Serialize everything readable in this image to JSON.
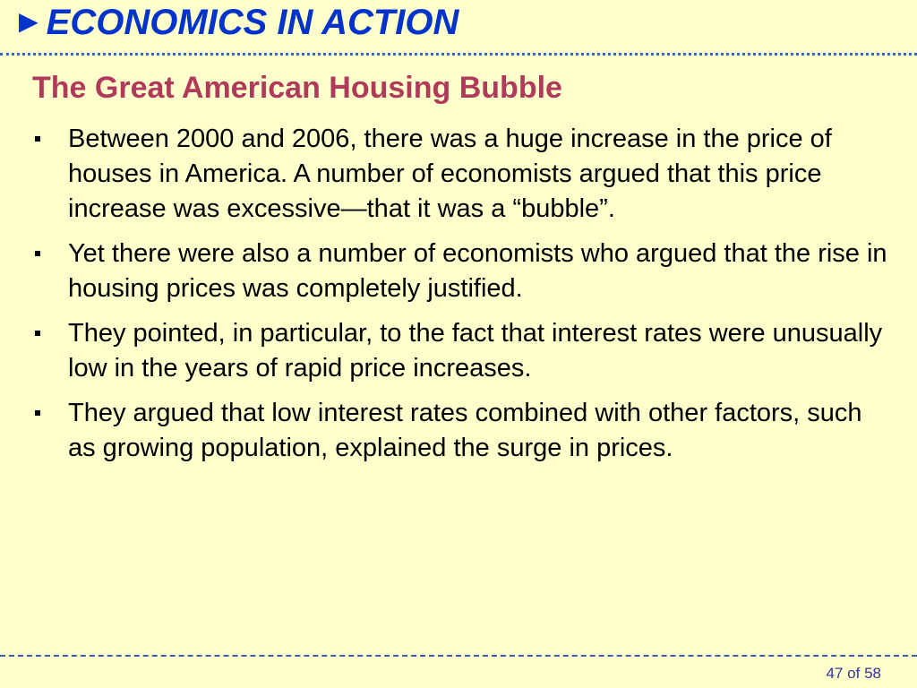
{
  "header": {
    "arrow_glyph": "►",
    "title": "ECONOMICS IN ACTION"
  },
  "slide": {
    "subtitle": "The Great American Housing Bubble",
    "bullets": [
      "Between 2000 and 2006, there was a huge increase in the price of houses in America. A number of economists argued that this price increase was excessive—that it was a “bubble”.",
      "Yet there were also a number of economists who argued that the rise in housing prices was completely justified.",
      "They pointed, in particular, to the fact that interest rates were unusually low in the years of rapid price increases.",
      "They argued that low interest rates combined with other factors, such as growing population, explained the surge in prices."
    ]
  },
  "footer": {
    "page_number": "47 of 58"
  },
  "colors": {
    "background": "#ffffcc",
    "header": "#0033cc",
    "subtitle": "#b03a5b",
    "body_text": "#000000"
  }
}
